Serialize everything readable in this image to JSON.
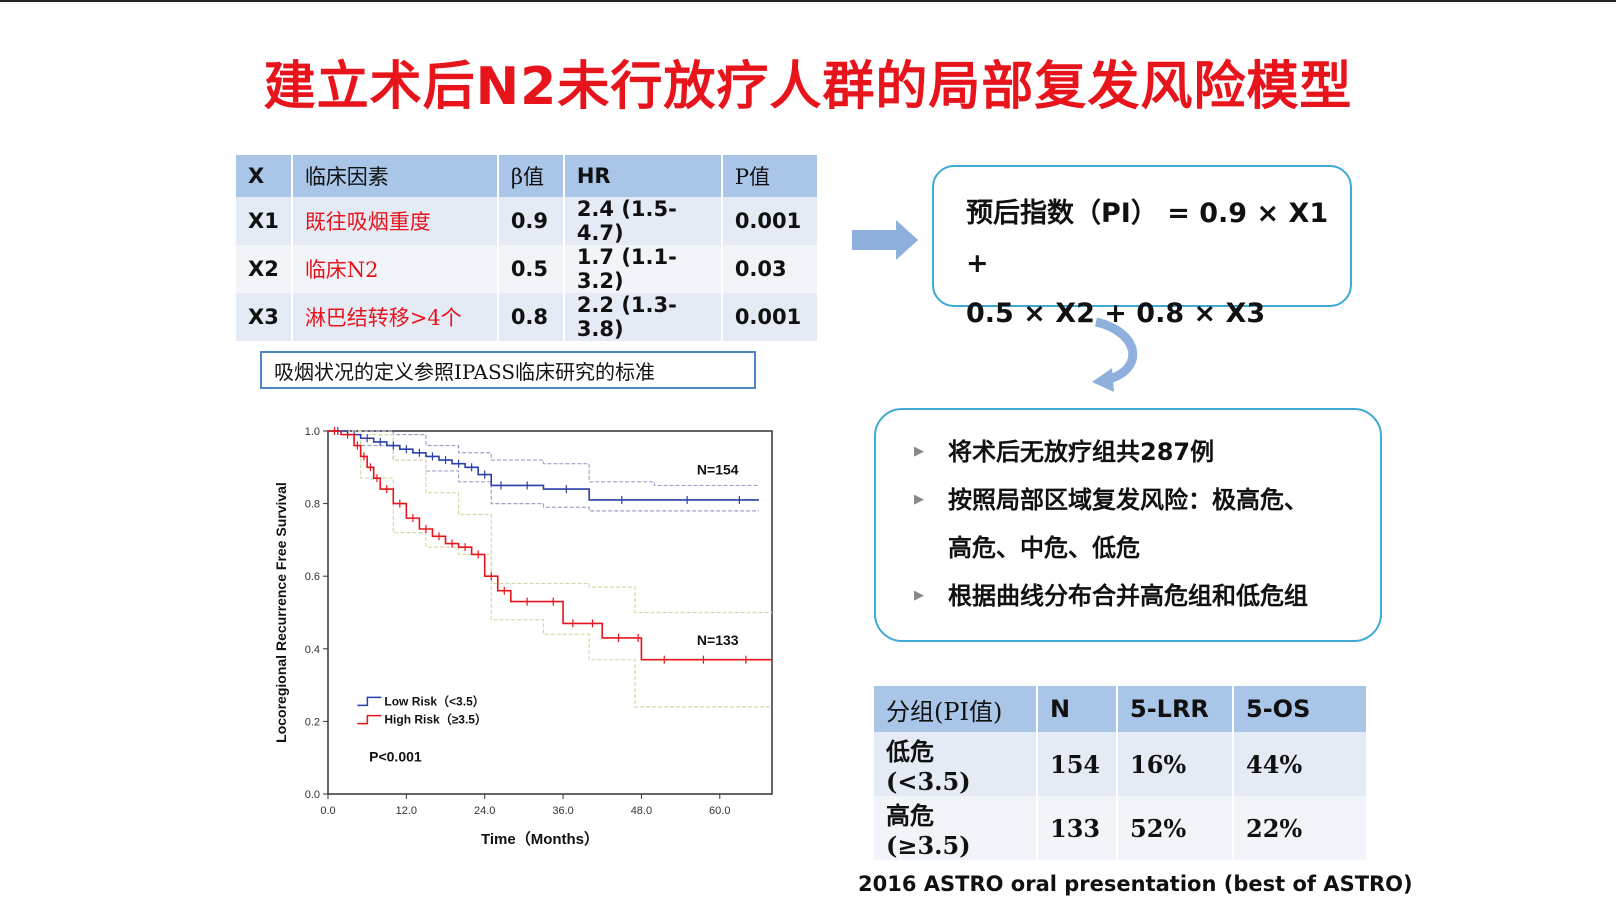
{
  "title": "建立术后N2未行放疗人群的局部复发风险模型",
  "factor_table": {
    "headers": [
      "X",
      "临床因素",
      "β值",
      "HR",
      "P值"
    ],
    "rows": [
      {
        "x": "X1",
        "factor": "既往吸烟重度",
        "beta": "0.9",
        "hr": "2.4 (1.5-4.7)",
        "p": "0.001"
      },
      {
        "x": "X2",
        "factor": "临床N2",
        "beta": "0.5",
        "hr": "1.7 (1.1-3.2)",
        "p": "0.03"
      },
      {
        "x": "X3",
        "factor": "淋巴结转移>4个",
        "beta": "0.8",
        "hr": "2.2 (1.3-3.8)",
        "p": "0.001"
      }
    ]
  },
  "note": "吸烟状况的定义参照IPASS临床研究的标准",
  "pi_formula": {
    "line1": "预后指数（PI）  = 0.9 × X1 +",
    "line2": "0.5 × X2 + 0.8 × X3"
  },
  "bullets": [
    "将术后无放疗组共287例",
    "按照局部区域复发风险：极高危、",
    "高危、中危、低危",
    "根据曲线分布合并高危组和低危组"
  ],
  "group_table": {
    "headers": [
      "分组(PI值)",
      "N",
      "5-LRR",
      "5-OS"
    ],
    "rows": [
      {
        "group": "低危 (<3.5)",
        "n": "154",
        "lrr": "16%",
        "os": "44%"
      },
      {
        "group": "高危 (≥3.5)",
        "n": "133",
        "lrr": "52%",
        "os": "22%"
      }
    ]
  },
  "citation": "2016 ASTRO oral presentation (best of ASTRO)",
  "colors": {
    "title_red": "#e8141c",
    "header_blue": "#a9c6e8",
    "box_border": "#3fa9d6",
    "low_risk": "#2b3fa8",
    "high_risk": "#e8141c"
  },
  "chart_data": {
    "type": "line",
    "xlabel": "Time（Months）",
    "ylabel": "Locoregional Recurrence Free Survival",
    "xlim": [
      0,
      68
    ],
    "ylim": [
      0,
      1.0
    ],
    "x_ticks": [
      "0.0",
      "12.0",
      "24.0",
      "36.0",
      "48.0",
      "60.0"
    ],
    "y_ticks": [
      "0.0",
      "0.2",
      "0.4",
      "0.6",
      "0.8",
      "1.0"
    ],
    "legend": [
      "Low Risk（<3.5）",
      "High Risk（≥3.5）"
    ],
    "legend_position": "bottom-left",
    "annotations": [
      "N=154",
      "N=133",
      "P<0.001"
    ],
    "series": [
      {
        "name": "Low Risk（<3.5）",
        "x": [
          0,
          3,
          5,
          7,
          9,
          11,
          13,
          15,
          17,
          19,
          21,
          23,
          25,
          28,
          33,
          40,
          50,
          60,
          66
        ],
        "y": [
          1.0,
          0.99,
          0.98,
          0.97,
          0.96,
          0.95,
          0.94,
          0.93,
          0.92,
          0.91,
          0.9,
          0.88,
          0.85,
          0.85,
          0.84,
          0.81,
          0.81,
          0.81,
          0.81
        ]
      },
      {
        "name": "High Risk（≥3.5）",
        "x": [
          0,
          2,
          4,
          5,
          6,
          7,
          8,
          10,
          12,
          14,
          16,
          18,
          20,
          22,
          24,
          26,
          28,
          33,
          36,
          39,
          42,
          47,
          48,
          55,
          60,
          68
        ],
        "y": [
          1.0,
          0.99,
          0.96,
          0.93,
          0.9,
          0.87,
          0.84,
          0.8,
          0.76,
          0.73,
          0.71,
          0.69,
          0.68,
          0.66,
          0.6,
          0.56,
          0.53,
          0.53,
          0.47,
          0.47,
          0.43,
          0.43,
          0.37,
          0.37,
          0.37,
          0.37
        ]
      }
    ],
    "confidence_band_low": {
      "x": [
        0,
        5,
        10,
        15,
        20,
        25,
        33,
        40,
        50,
        60,
        66
      ],
      "upper": [
        1.0,
        1.0,
        0.99,
        0.96,
        0.94,
        0.92,
        0.91,
        0.86,
        0.85,
        0.85,
        0.85
      ],
      "lower": [
        1.0,
        0.96,
        0.92,
        0.89,
        0.86,
        0.8,
        0.79,
        0.78,
        0.78,
        0.78,
        0.78
      ]
    },
    "confidence_band_high": {
      "x": [
        0,
        5,
        10,
        15,
        20,
        25,
        33,
        40,
        47,
        55,
        60,
        68
      ],
      "upper": [
        1.0,
        0.99,
        0.92,
        0.83,
        0.77,
        0.58,
        0.58,
        0.57,
        0.5,
        0.5,
        0.5,
        0.5
      ],
      "lower": [
        1.0,
        0.87,
        0.72,
        0.68,
        0.66,
        0.48,
        0.44,
        0.37,
        0.24,
        0.24,
        0.24,
        0.24
      ]
    }
  }
}
